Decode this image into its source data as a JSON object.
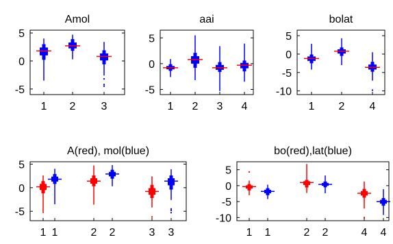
{
  "chart_data": [
    {
      "type": "boxplot",
      "title": "Amol",
      "ylim": [
        -6,
        5.5
      ],
      "yticks": [
        5,
        0,
        -5
      ],
      "categories": [
        "1",
        "2",
        "3"
      ],
      "grid": false,
      "boxes": [
        {
          "label": "1",
          "color": "#0000ff",
          "mean": 1.8,
          "q1": 0.2,
          "q3": 3.0,
          "whisker_low": -3.5,
          "whisker_high": 4.0,
          "median_color": "#ff0000"
        },
        {
          "label": "2",
          "color": "#0000ff",
          "mean": 2.7,
          "q1": 1.8,
          "q3": 3.9,
          "whisker_low": 0.3,
          "whisker_high": 4.7,
          "median_color": "#ff0000"
        },
        {
          "label": "3",
          "color": "#0000ff",
          "mean": 0.8,
          "q1": -0.6,
          "q3": 1.9,
          "whisker_low": -2.6,
          "whisker_high": 3.4,
          "median_color": "#ff0000",
          "outliers": [
            -3.2,
            -4.2,
            -4.5
          ]
        }
      ]
    },
    {
      "type": "boxplot",
      "title": "aai",
      "ylim": [
        -6,
        6.5
      ],
      "yticks": [
        5,
        0,
        -5
      ],
      "categories": [
        "1",
        "2",
        "3",
        "4"
      ],
      "grid": false,
      "boxes": [
        {
          "label": "1",
          "color": "#0000ff",
          "mean": -0.8,
          "q1": -1.4,
          "q3": -0.1,
          "whisker_low": -2.6,
          "whisker_high": 0.9,
          "median_color": "#ff0000"
        },
        {
          "label": "2",
          "color": "#0000ff",
          "mean": 0.8,
          "q1": -0.8,
          "q3": 2.1,
          "whisker_low": -3.2,
          "whisker_high": 5.5,
          "median_color": "#ff0000"
        },
        {
          "label": "3",
          "color": "#0000ff",
          "mean": -0.8,
          "q1": -1.6,
          "q3": 0.3,
          "whisker_low": -5.3,
          "whisker_high": 3.4,
          "median_color": "#ff0000"
        },
        {
          "label": "4",
          "color": "#0000ff",
          "mean": -0.3,
          "q1": -1.5,
          "q3": 0.6,
          "whisker_low": -3.5,
          "whisker_high": 3.9,
          "median_color": "#ff0000"
        }
      ]
    },
    {
      "type": "boxplot",
      "title": "bolat",
      "ylim": [
        -11,
        6.5
      ],
      "yticks": [
        5,
        0,
        -5,
        -10
      ],
      "categories": [
        "1",
        "2",
        "4"
      ],
      "grid": false,
      "boxes": [
        {
          "label": "1",
          "color": "#0000ff",
          "mean": -1.2,
          "q1": -2.5,
          "q3": -0.1,
          "whisker_low": -4.2,
          "whisker_high": 2.8,
          "median_color": "#ff0000"
        },
        {
          "label": "2",
          "color": "#0000ff",
          "mean": 0.8,
          "q1": -0.5,
          "q3": 1.8,
          "whisker_low": -3.0,
          "whisker_high": 4.3,
          "median_color": "#ff0000"
        },
        {
          "label": "4",
          "color": "#0000ff",
          "mean": -3.6,
          "q1": -4.8,
          "q3": -2.1,
          "whisker_low": -7.2,
          "whisker_high": 0.5,
          "median_color": "#ff0000",
          "outliers": [
            -9.8
          ]
        }
      ]
    },
    {
      "type": "boxplot",
      "title": "A(red), mol(blue)",
      "ylim": [
        -7,
        5.5
      ],
      "yticks": [
        5,
        0,
        -5
      ],
      "categories": [
        "1",
        "1",
        "2",
        "2",
        "3",
        "3"
      ],
      "grid": false,
      "boxes": [
        {
          "label": "1",
          "color": "#ff0000",
          "mean": 0.2,
          "q1": -1.2,
          "q3": 1.4,
          "whisker_low": -5.4,
          "whisker_high": 2.6,
          "median_color": "#ff0000"
        },
        {
          "label": "1",
          "color": "#0000ff",
          "mean": 1.8,
          "q1": 0.8,
          "q3": 2.9,
          "whisker_low": -3.5,
          "whisker_high": 4.0,
          "median_color": "#0000ff"
        },
        {
          "label": "2",
          "color": "#ff0000",
          "mean": 1.4,
          "q1": 0.3,
          "q3": 2.6,
          "whisker_low": -3.6,
          "whisker_high": 4.7,
          "median_color": "#ff0000"
        },
        {
          "label": "2",
          "color": "#0000ff",
          "mean": 2.9,
          "q1": 1.9,
          "q3": 3.8,
          "whisker_low": 0.3,
          "whisker_high": 4.8,
          "median_color": "#0000ff"
        },
        {
          "label": "3",
          "color": "#ff0000",
          "mean": -0.8,
          "q1": -2.2,
          "q3": 0.6,
          "whisker_low": -4.2,
          "whisker_high": 2.4,
          "median_color": "#ff0000",
          "outliers": [
            -6.2
          ]
        },
        {
          "label": "3",
          "color": "#0000ff",
          "mean": 1.4,
          "q1": -0.4,
          "q3": 2.6,
          "whisker_low": -2.6,
          "whisker_high": 3.9,
          "median_color": "#0000ff",
          "outliers": [
            -4.5,
            -4.8,
            -5.3
          ]
        }
      ]
    },
    {
      "type": "boxplot",
      "title": "bo(red),lat(blue)",
      "ylim": [
        -11,
        7.5
      ],
      "yticks": [
        5,
        0,
        -5,
        -10
      ],
      "categories": [
        "1",
        "1",
        "2",
        "2",
        "4",
        "4"
      ],
      "grid": false,
      "boxes": [
        {
          "label": "1",
          "color": "#ff0000",
          "mean": -0.3,
          "q1": -1.5,
          "q3": 0.5,
          "whisker_low": -3.0,
          "whisker_high": 1.6,
          "median_color": "#ff0000",
          "outliers": [
            4.3
          ]
        },
        {
          "label": "1",
          "color": "#0000ff",
          "mean": -1.8,
          "q1": -3.0,
          "q3": -0.8,
          "whisker_low": -4.2,
          "whisker_high": 0.3,
          "median_color": "#0000ff"
        },
        {
          "label": "2",
          "color": "#ff0000",
          "mean": 1.0,
          "q1": -0.6,
          "q3": 1.8,
          "whisker_low": -2.3,
          "whisker_high": 6.8,
          "median_color": "#ff0000"
        },
        {
          "label": "2",
          "color": "#0000ff",
          "mean": 0.4,
          "q1": -0.5,
          "q3": 1.3,
          "whisker_low": -2.4,
          "whisker_high": 3.2,
          "median_color": "#0000ff"
        },
        {
          "label": "4",
          "color": "#ff0000",
          "mean": -2.4,
          "q1": -3.8,
          "q3": -1.0,
          "whisker_low": -7.2,
          "whisker_high": 1.3,
          "median_color": "#ff0000",
          "outliers": [
            -10.0
          ]
        },
        {
          "label": "4",
          "color": "#0000ff",
          "mean": -5.0,
          "q1": -6.3,
          "q3": -3.9,
          "whisker_low": -9.2,
          "whisker_high": -1.1,
          "median_color": "#0000ff"
        }
      ]
    }
  ]
}
